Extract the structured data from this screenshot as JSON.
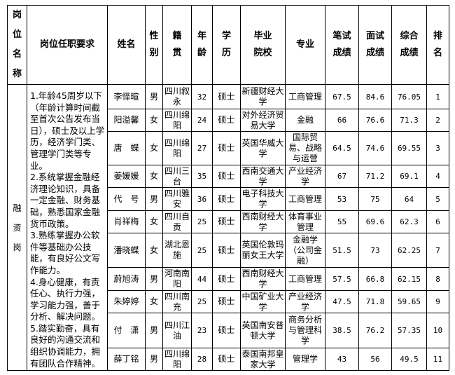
{
  "headers": {
    "position": "岗\n位\n名\n称",
    "requirements": "岗位任职要求",
    "name": "姓名",
    "gender": "性\n别",
    "origin": "籍\n贯",
    "age": "年\n龄",
    "education": "学\n历",
    "school": "毕业\n院校",
    "major": "专业",
    "written": "笔试\n成绩",
    "interview": "面试\n成绩",
    "total": "综合\n成绩",
    "rank": "排\n名"
  },
  "position": "融\n资\n岗",
  "requirements": "1.年龄45周岁以下（年龄计算时间截至首次公告发布当日），硕士及以上学历，经济学门类、管理学门类等专业。\n2.系统掌握金融经济理论知识，具备一定金融、财务基础，熟悉国家金融货币政策。\n3.熟练掌握办公软件等基础办公技能，有良好公文写作能力。\n4.身心健康，有责任心、执行力强，学习能力强，善于分析、解决问题。\n5.踏实勤奋，具有良好的沟通交流和组织协调能力，拥有团队合作精神。",
  "rows": [
    {
      "name": "李怿暄",
      "gender": "男",
      "origin": "四川叙永",
      "age": "32",
      "education": "硕士",
      "school": "新疆财经大学",
      "major": "工商管理",
      "written": "67.5",
      "interview": "84.6",
      "total": "76.05",
      "rank": "1"
    },
    {
      "name": "阳溢馨",
      "gender": "女",
      "origin": "四川绵阳",
      "age": "24",
      "education": "硕士",
      "school": "对外经济贸易大学",
      "major": "金融",
      "written": "66",
      "interview": "76.6",
      "total": "71.3",
      "rank": "2"
    },
    {
      "name": "唐　蝶",
      "gender": "女",
      "origin": "四川绵阳",
      "age": "27",
      "education": "硕士",
      "school": "英国华威大学",
      "major": "国际贸易、战略与运营",
      "written": "64.5",
      "interview": "74.6",
      "total": "69.55",
      "rank": "3"
    },
    {
      "name": "姜媛媛",
      "gender": "女",
      "origin": "四川三台",
      "age": "35",
      "education": "硕士",
      "school": "西南交通大学",
      "major": "产业经济学",
      "written": "67",
      "interview": "71.2",
      "total": "69.1",
      "rank": "4"
    },
    {
      "name": "代　号",
      "gender": "男",
      "origin": "四川雅安",
      "age": "36",
      "education": "硕士",
      "school": "电子科技大学",
      "major": "工商管理",
      "written": "53",
      "interview": "75",
      "total": "64",
      "rank": "5"
    },
    {
      "name": "肖祥梅",
      "gender": "女",
      "origin": "四川自贡",
      "age": "25",
      "education": "硕士",
      "school": "西南财经大学",
      "major": "体育事业管理",
      "written": "55",
      "interview": "69.6",
      "total": "62.3",
      "rank": "6"
    },
    {
      "name": "潘晓蝶",
      "gender": "女",
      "origin": "湖北恩施",
      "age": "25",
      "education": "硕士",
      "school": "英国伦敦玛丽女王大学",
      "major": "金融学（公司金融）",
      "written": "51.5",
      "interview": "73",
      "total": "62.25",
      "rank": "7"
    },
    {
      "name": "蔚旭涛",
      "gender": "男",
      "origin": "河南南阳",
      "age": "44",
      "education": "硕士",
      "school": "西南财经大学",
      "major": "工商管理",
      "written": "57.5",
      "interview": "66.8",
      "total": "62.15",
      "rank": "8"
    },
    {
      "name": "朱婷婷",
      "gender": "女",
      "origin": "四川南充",
      "age": "25",
      "education": "硕士",
      "school": "中国矿业大学",
      "major": "产业经济学",
      "written": "47.5",
      "interview": "71.8",
      "total": "59.65",
      "rank": "9"
    },
    {
      "name": "付　潇",
      "gender": "男",
      "origin": "四川江油",
      "age": "23",
      "education": "硕士",
      "school": "英国南安普顿大学",
      "major": "商务分析与管理科学",
      "written": "38.5",
      "interview": "76.2",
      "total": "57.35",
      "rank": "10"
    },
    {
      "name": "薛丁铭",
      "gender": "男",
      "origin": "四川绵阳",
      "age": "28",
      "education": "硕士",
      "school": "泰国南邦皇家大学",
      "major": "管理学",
      "written": "43",
      "interview": "56",
      "total": "49.5",
      "rank": "11"
    }
  ]
}
